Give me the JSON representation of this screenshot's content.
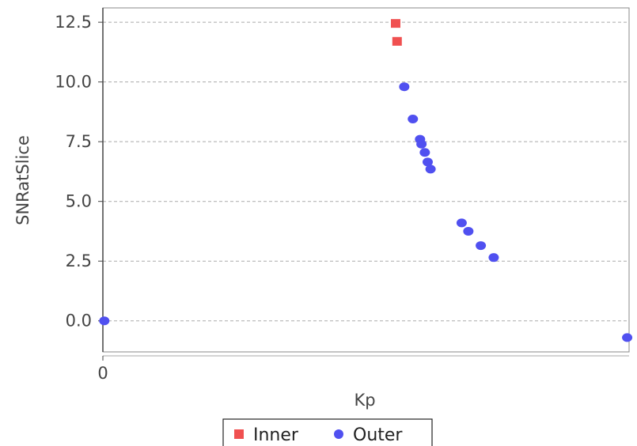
{
  "chart_data": {
    "type": "scatter",
    "xlabel": "Kp",
    "ylabel": "SNRatSlice",
    "x_ticks": [
      "0"
    ],
    "y_ticks": [
      "0.0",
      "2.5",
      "5.0",
      "7.5",
      "10.0",
      "12.5"
    ],
    "xlim": [
      0,
      11
    ],
    "ylim": [
      -1.3,
      13.1
    ],
    "grid": "horizontal",
    "legend_position": "bottom",
    "series": [
      {
        "name": "Inner",
        "marker": "square",
        "color": "#f05050",
        "x": [
          6.12,
          6.15
        ],
        "y": [
          12.45,
          11.7
        ]
      },
      {
        "name": "Outer",
        "marker": "circle",
        "color": "#5050f0",
        "x": [
          0.03,
          6.3,
          6.48,
          6.63,
          6.66,
          6.73,
          6.79,
          6.85,
          7.5,
          7.64,
          7.9,
          8.17,
          10.96
        ],
        "y": [
          0.0,
          9.8,
          8.45,
          7.6,
          7.4,
          7.05,
          6.65,
          6.35,
          4.1,
          3.75,
          3.15,
          2.65,
          -0.7
        ]
      }
    ]
  }
}
